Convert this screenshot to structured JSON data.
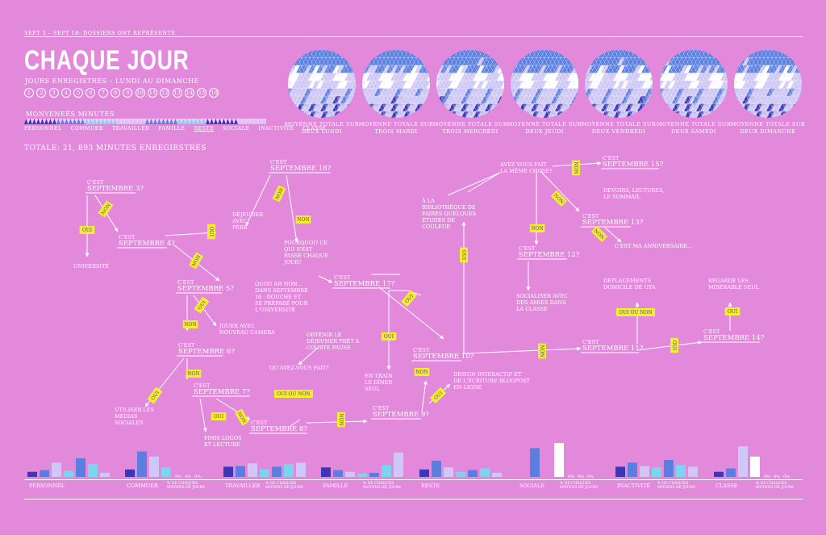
{
  "header": {
    "top_label": "sept 3 – sept 18: dossiers ont représenté",
    "title": "CHAQUE JOUR",
    "subtitle": "jours enregistrés – lundi au dimanche",
    "days": [
      "1",
      "2",
      "3",
      "4",
      "5",
      "6",
      "7",
      "8",
      "9",
      "10",
      "11",
      "12",
      "13",
      "14",
      "15",
      "16"
    ],
    "legend_title": "monyeneés   minutes",
    "categories": [
      "personnel",
      "commuer",
      "travailler",
      "famille",
      "reste",
      "sociale",
      "inactivité",
      "classe"
    ],
    "totale": "totale:   21, 893 minutes enregirstrés"
  },
  "colors": {
    "background": "#e389dc",
    "blue": "#5a7fe0",
    "navy": "#3a37b8",
    "light_blue": "#7ad6f0",
    "lavender": "#cfc7f5",
    "white": "#ffffff",
    "tag": "#f7ee2a"
  },
  "circles": [
    {
      "label": "moyenne totale sur deux lundi"
    },
    {
      "label": "moyenne totale sur trois mardi"
    },
    {
      "label": "moyenne totale sur trois mercredi"
    },
    {
      "label": "moyenne totale sur deux jeudi"
    },
    {
      "label": "moyenne totale sur deux vendredi"
    },
    {
      "label": "moyenne totale sur deux samedi"
    },
    {
      "label": "moyenne totale sur deux dimanche"
    }
  ],
  "diagram": {
    "nodes": {
      "s3": "c'est septembre 3?",
      "s4": "c'est septembre 4?",
      "s5": "c'est septembre 5?",
      "s6": "c'est septembre 6?",
      "s7": "c'est septembre 7?",
      "s8": "c'est septembre 8?",
      "s9": "c'est septembre 9?",
      "s10": "c'est septembre 10?",
      "s11": "c'est septembre 11?",
      "s12": "c'est septembre 12?",
      "s13": "c'est septembre 13?",
      "s14": "c'est septembre 14?",
      "s15": "c'est septembre 15?",
      "s17": "c'est septembre 17?",
      "s18": "c'est septembre 18?"
    },
    "labels": {
      "universite": "université",
      "dejeuner_pere": "déjeuner avec père",
      "pourquoi": "pourquoi? ce qui s'est passé chaque jour?",
      "quoi": "quoi! ah non... dans septembre 16 - douche et se préparé pour l'université",
      "jouer": "jouer avec nouveau camera",
      "obtenir": "obtenir le déjeuner prêt à courte pause",
      "quavez": "qu'avez-vous fait?",
      "utiliser": "utiliser les médias sociales",
      "finis": "finis logos et lecture",
      "train": "en train le dîner seul",
      "design": "design interactif et de l'écriture blogpost en ligne",
      "bibliotheque": "à la bibliothèque de faires quelques études de couleur",
      "meme": "avez vous fait la même chose?",
      "devoirs": "devoirs, lectures, le sommail",
      "anniversaire": "c'est ma anniversaire...",
      "socialiser": "socialiser avec des amies dans la classe",
      "deplacements": "déplacements domicile de uta",
      "regarde": "regardé les misérable seul"
    },
    "tags": {
      "oui": "oui",
      "non": "non",
      "ouiounon": "oui ou non"
    }
  },
  "bottom": {
    "pct_label": "% de chaques moyens de jours",
    "zero": "0%",
    "groups": [
      {
        "name": "personnel",
        "values": [
          0.15,
          0.2,
          0.42,
          0.18,
          0.55,
          0.38,
          0.12
        ],
        "show_pct": false
      },
      {
        "name": "commuer",
        "values": [
          0.22,
          0.75,
          0.6,
          0.28,
          0.0,
          0.0,
          0.0
        ],
        "show_pct": true,
        "zeros": 3
      },
      {
        "name": "travailler",
        "values": [
          0.3,
          0.32,
          0.4,
          0.22,
          0.3,
          0.38,
          0.42
        ],
        "show_pct": true,
        "zeros": 0
      },
      {
        "name": "famille",
        "values": [
          0.28,
          0.2,
          0.15,
          0.1,
          0.12,
          0.35,
          0.72
        ],
        "show_pct": true,
        "zeros": 0
      },
      {
        "name": "reste",
        "values": [
          0.22,
          0.48,
          0.28,
          0.15,
          0.2,
          0.25,
          0.12
        ],
        "show_pct": false
      },
      {
        "name": "sociale",
        "values": [
          0.0,
          0.85,
          0.0,
          1.0,
          0.0,
          0.0,
          0.0
        ],
        "show_pct": true,
        "zeros": 3
      },
      {
        "name": "inactivité",
        "values": [
          0.3,
          0.42,
          0.32,
          0.28,
          0.5,
          0.35,
          0.3
        ],
        "show_pct": true,
        "zeros": 0
      },
      {
        "name": "classe",
        "values": [
          0.15,
          0.25,
          0.9,
          0.6,
          0.0,
          0.0,
          0.0
        ],
        "show_pct": true,
        "zeros": 3
      }
    ]
  }
}
